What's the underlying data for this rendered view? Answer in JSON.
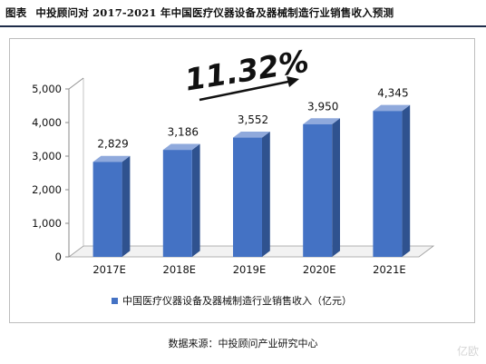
{
  "title": {
    "label": "图表",
    "text": "中投顾问对 2017-2021 年中国医疗仪器设备及器械制造行业销售收入预测"
  },
  "growth_annotation": "11.32%",
  "source": "数据来源：中投顾问产业研究中心",
  "watermark": "亿欧",
  "colors": {
    "bar_front": "#4472c4",
    "bar_side": "#2f528f",
    "bar_top": "#8fa9dc",
    "arrow": "#111111"
  },
  "chart_data": {
    "type": "bar",
    "categories": [
      "2017E",
      "2018E",
      "2019E",
      "2020E",
      "2021E"
    ],
    "series": [
      {
        "name": "中国医疗仪器设备及器械制造行业销售收入（亿元）",
        "values": [
          2829,
          3186,
          3552,
          3950,
          4345
        ]
      }
    ],
    "value_labels": [
      "2,829",
      "3,186",
      "3,552",
      "3,950",
      "4,345"
    ],
    "y_ticks": [
      "0",
      "1,000",
      "2,000",
      "3,000",
      "4,000",
      "5,000"
    ],
    "ylim": [
      0,
      5000
    ],
    "grid": false,
    "legend_position": "bottom",
    "three_d": true
  }
}
